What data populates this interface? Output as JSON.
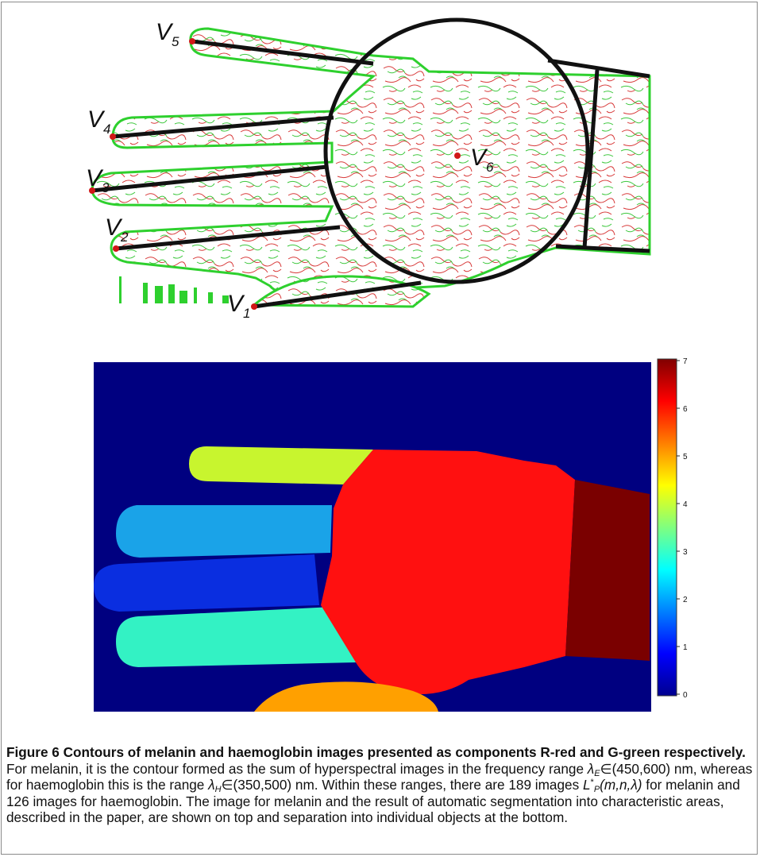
{
  "figure": {
    "landmarks": [
      {
        "name": "V",
        "sub": "5"
      },
      {
        "name": "V",
        "sub": "4"
      },
      {
        "name": "V",
        "sub": "3"
      },
      {
        "name": "V",
        "sub": "2"
      },
      {
        "name": "V",
        "sub": "1"
      },
      {
        "name": "V",
        "sub": "6"
      }
    ],
    "contour_colors": {
      "melanin": "#e02020",
      "haemoglobin": "#1ec81e"
    },
    "segment_colors": {
      "background": "#000080",
      "finger_top": "#c8f52e",
      "finger_upper_middle": "#1aa3e8",
      "finger_lower_middle": "#0a2ee0",
      "finger_bottom": "#33f2c4",
      "palm": "#ff1010",
      "wrist": "#7a0000",
      "thumb": "#ffa000"
    },
    "colorbar": {
      "ticks": [
        "7",
        "6",
        "5",
        "4",
        "3",
        "2",
        "1",
        "0"
      ],
      "colormap": "jet"
    }
  },
  "caption": {
    "label": "Figure 6",
    "title": "Contours of melanin and haemoglobin images presented as components R-red and G-green respectively.",
    "t1": "For melanin, it is the contour formed as the sum of hyperspectral images in the frequency range ",
    "lambda": "λ",
    "subE": "E",
    "range_melanin": "∈(450,600) nm, whereas for haemoglobin this is the range ",
    "subH": "H",
    "range_haemo": "∈(350,500) nm. Within these ranges, there are 189 images ",
    "L": "L",
    "star": "*",
    "subP": "P",
    "args": "(m,n,λ)",
    "t2": " for melanin and 126 images for haemoglobin. The image for melanin and the result of automatic segmentation into characteristic areas, described in the paper, are shown on top and separation into individual objects at the bottom."
  }
}
